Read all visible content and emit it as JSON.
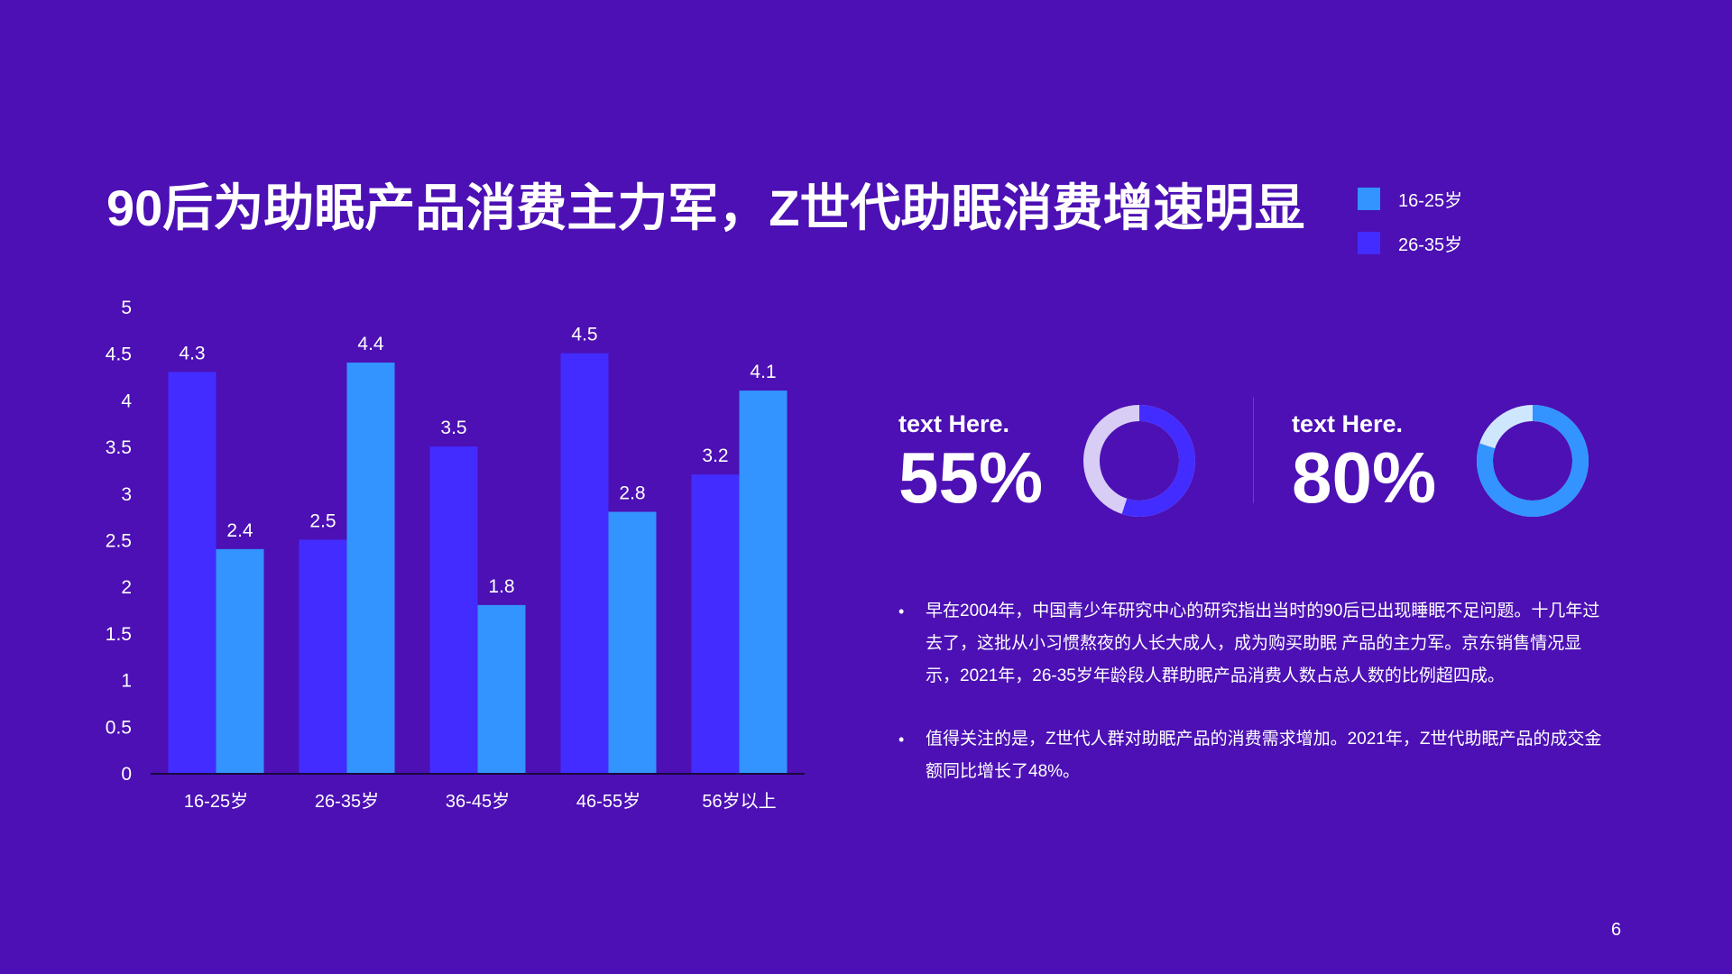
{
  "slide": {
    "title": "90后为助眠产品消费主力军，Z世代助眠消费增速明显",
    "page_number": "6"
  },
  "colors": {
    "background": "#4c10b4",
    "series_16_25": "#3393ff",
    "series_26_35": "#432cff",
    "donut1_fill": "#432cff",
    "donut1_track": "#d8cdf5",
    "donut2_fill": "#3393ff",
    "donut2_track": "#cfe6ff"
  },
  "legend": [
    {
      "label": "16-25岁",
      "color": "#3393ff"
    },
    {
      "label": "26-35岁",
      "color": "#432cff"
    }
  ],
  "chart_data": {
    "type": "bar",
    "categories": [
      "16-25岁",
      "26-35岁",
      "36-45岁",
      "46-55岁",
      "56岁以上"
    ],
    "series": [
      {
        "name": "26-35岁",
        "color": "#432cff",
        "values": [
          4.3,
          2.5,
          3.5,
          4.5,
          3.2
        ]
      },
      {
        "name": "16-25岁",
        "color": "#3393ff",
        "values": [
          2.4,
          4.4,
          1.8,
          2.8,
          4.1
        ]
      }
    ],
    "ylim": [
      0,
      5
    ],
    "yticks": [
      "0",
      "0.5",
      "1",
      "1.5",
      "2",
      "2.5",
      "3",
      "3.5",
      "4",
      "4.5",
      "5"
    ],
    "grid": false,
    "legend_position": "top-right"
  },
  "stats": [
    {
      "label": "text Here.",
      "value": "55%",
      "percent": 55
    },
    {
      "label": "text Here.",
      "value": "80%",
      "percent": 80
    }
  ],
  "bullets": [
    "早在2004年，中国青少年研究中心的研究指出当时的90后已出现睡眠不足问题。十几年过去了，这批从小习惯熬夜的人长大成人，成为购买助眠 产品的主力军。京东销售情况显示，2021年，26-35岁年龄段人群助眠产品消费人数占总人数的比例超四成。",
    "值得关注的是，Z世代人群对助眠产品的消费需求增加。2021年，Z世代助眠产品的成交金额同比增长了48%。"
  ]
}
